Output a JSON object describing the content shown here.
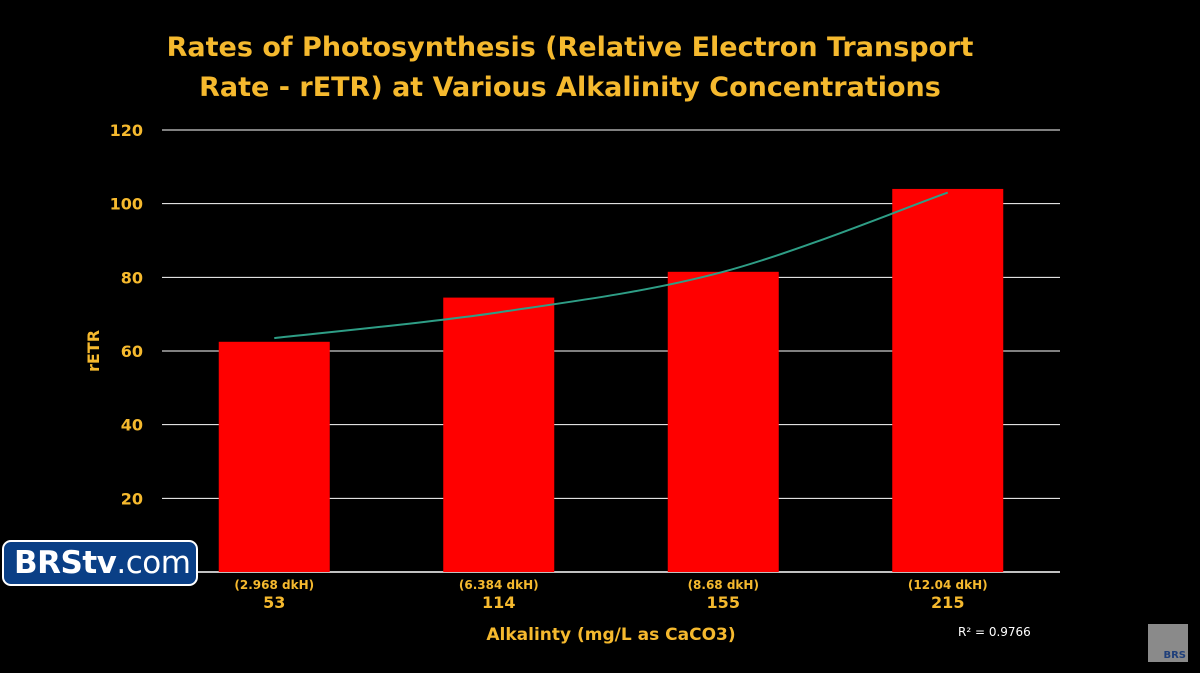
{
  "chart_data": {
    "type": "bar",
    "title_line1": "Rates of Photosynthesis (Relative Electron Transport",
    "title_line2": "Rate - rETR) at Various Alkalinity Concentrations",
    "xlabel": "Alkalinty (mg/L as CaCO3)",
    "ylabel": "rETR",
    "ylim": [
      0,
      120
    ],
    "yticks": [
      20,
      40,
      60,
      80,
      100,
      120
    ],
    "grid": true,
    "categories": [
      "53",
      "114",
      "155",
      "215"
    ],
    "category_sublabels": [
      "(2.968 dkH)",
      "(6.384 dkH)",
      "(8.68 dkH)",
      "(12.04 dkH)"
    ],
    "values": [
      62.5,
      74.5,
      81.5,
      104
    ],
    "trendline": {
      "type": "exponential",
      "values": [
        63.5,
        70.5,
        81.5,
        103
      ],
      "r_squared_label": "R² = 0.9766"
    },
    "colors": {
      "bar": "#ff0000",
      "trend": "#2e9e86",
      "grid": "#ffffff",
      "title": "#f5b92e",
      "axis_text": "#f5b92e",
      "background": "#000000"
    }
  },
  "logo": {
    "brand_strong": "BRStv",
    "brand_suffix": ".com",
    "corner_text": "BRS"
  }
}
